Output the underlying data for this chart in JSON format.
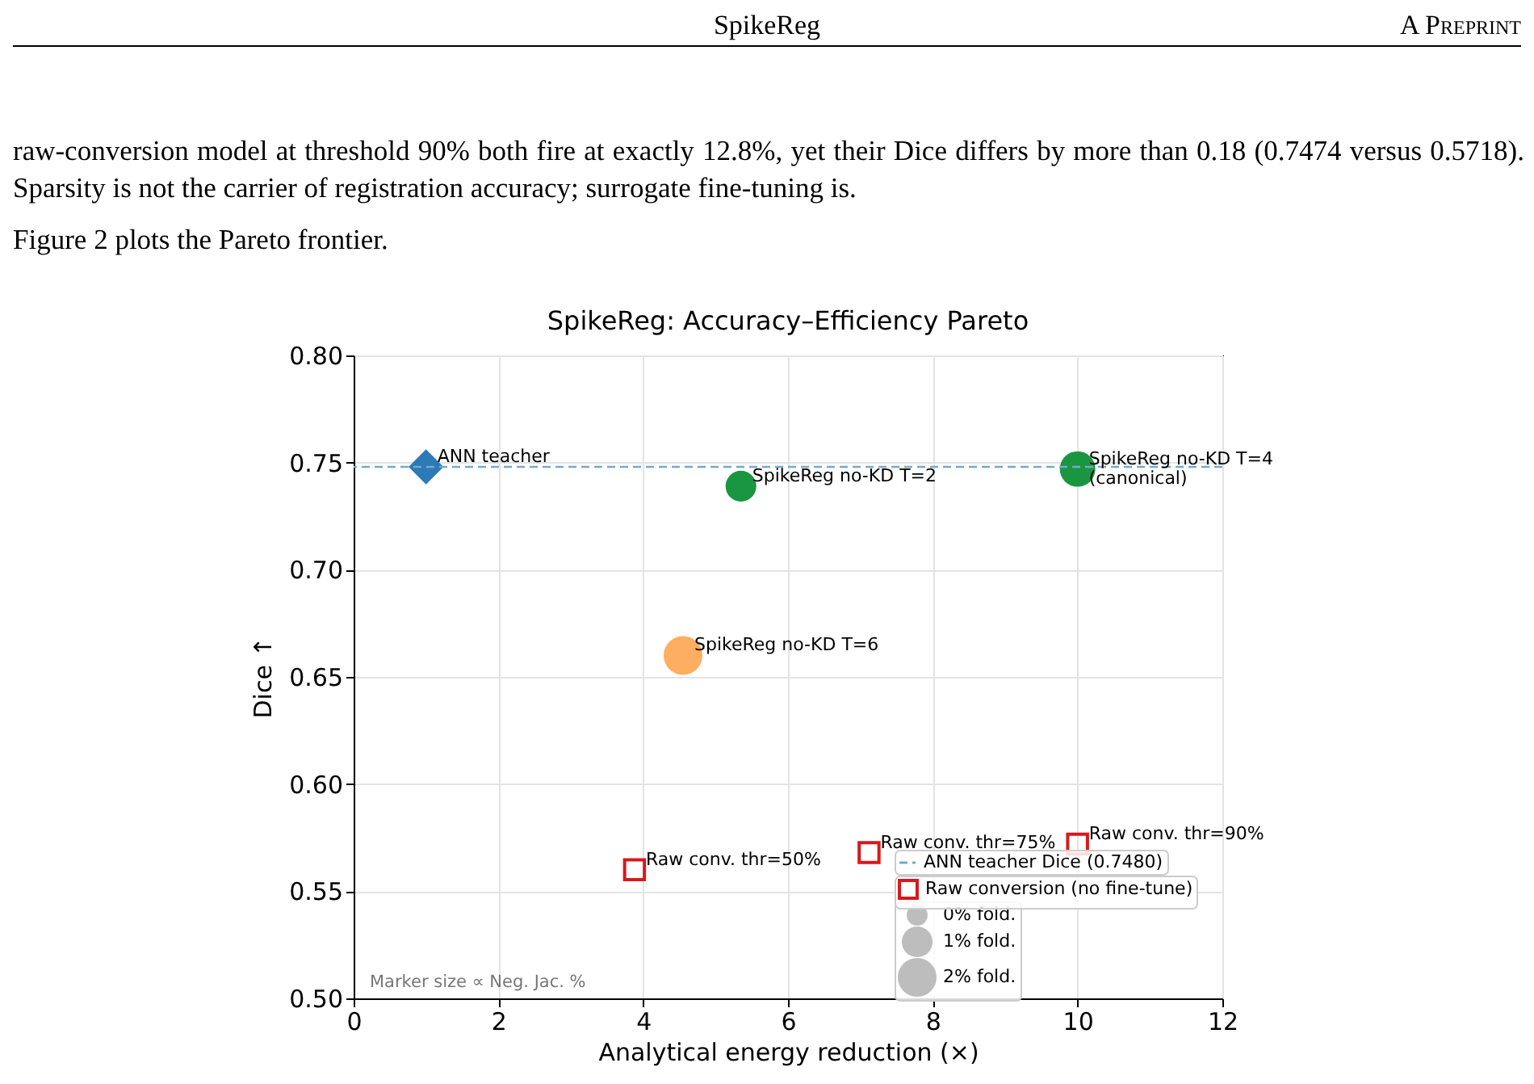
{
  "chart_data": {
    "type": "scatter",
    "title": "SpikeReg: Accuracy–Efficiency Pareto",
    "xlabel": "Analytical energy reduction (×)",
    "ylabel": "Dice ↑",
    "xlim": [
      0,
      12
    ],
    "xticks": [
      0,
      2,
      4,
      6,
      8,
      10,
      12
    ],
    "ylim": [
      0.5,
      0.8
    ],
    "yticks": [
      {
        "value": 0.5,
        "label": "0.50"
      },
      {
        "value": 0.55,
        "label": "0.55"
      },
      {
        "value": 0.6,
        "label": "0.60"
      },
      {
        "value": 0.65,
        "label": "0.65"
      },
      {
        "value": 0.7,
        "label": "0.70"
      },
      {
        "value": 0.75,
        "label": "0.75"
      },
      {
        "value": 0.8,
        "label": "0.80"
      }
    ],
    "grid": true,
    "legend": "bottom right",
    "size_legend": [
      {
        "value": 0.29,
        "label": "0% fold."
      },
      {
        "value": 0.63,
        "label": "1% fold."
      },
      {
        "value": 1,
        "label": "2% fold."
      }
    ],
    "ref_lines": [
      {
        "axis": "y",
        "value": 0.748,
        "label": "ANN teacher Dice (0.7480)",
        "color": "#74a9cf",
        "line_style": "dashed"
      }
    ],
    "series": [
      {
        "type": "scatter",
        "marker": "diamond",
        "color": "#2c7bb6",
        "x": [
          1
        ],
        "values": [
          0.748
        ]
      },
      {
        "type": "bubble",
        "x": [
          5.35,
          10,
          4.55
        ],
        "values": [
          0.739,
          0.747,
          0.66
        ],
        "sizes": [
          0.63,
          0.84,
          1.0
        ],
        "colors": [
          "#1a9641",
          "#1a9641",
          "#fdae61"
        ]
      },
      {
        "type": "scatter",
        "name": "Raw conversion (no fine-tune)",
        "marker": "square",
        "color": "#d7191c",
        "x": [
          3.88,
          7.12,
          10
        ],
        "values": [
          0.56,
          0.568,
          0.572
        ]
      }
    ],
    "annotations": [
      "SpikeReg",
      "A Preprint",
      "raw-conversion model at threshold 90% both fire at exactly 12.8%, yet their Dice differs by more than 0.18 (0.7474 versus 0.5718). Sparsity is not the carrier of registration accuracy; surrogate fine-tuning is.",
      "Figure 2 plots the Pareto frontier.",
      {
        "text": "ANN teacher",
        "x": 1,
        "y": 0.748
      },
      {
        "text": "SpikeReg no-KD T=2",
        "x": 5.35,
        "y": 0.739
      },
      {
        "text": "SpikeReg no-KD T=4\n(canonical)",
        "x": 10,
        "y": 0.747
      },
      {
        "text": "SpikeReg no-KD T=6",
        "x": 4.55,
        "y": 0.66
      },
      {
        "text": "Raw conv. thr=50%",
        "x": 3.88,
        "y": 0.56
      },
      {
        "text": "Raw conv. thr=75%",
        "x": 7.12,
        "y": 0.568
      },
      {
        "text": "Raw conv. thr=90%",
        "x": 10,
        "y": 0.572
      },
      "Marker size ∝ Neg. Jac. %"
    ]
  }
}
